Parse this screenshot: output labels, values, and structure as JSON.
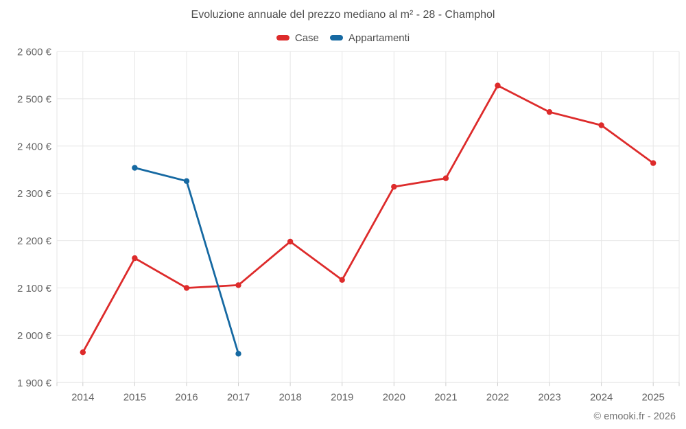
{
  "page": {
    "title": "Evoluzione annuale del prezzo mediano al m² - 28 - Champhol",
    "attribution": "© emooki.fr - 2026"
  },
  "colors": {
    "case_red": "#dd2b2b",
    "appartamenti_blue": "#1669a2",
    "grid": "#e6e6e6",
    "axis_tick": "#cccccc",
    "tick_label": "#666666",
    "title_text": "#4d4d4d",
    "attribution_text": "#757575"
  },
  "chart_data": {
    "type": "line",
    "title": "Evoluzione annuale del prezzo mediano al m² - 28 - Champhol",
    "x": [
      2014,
      2015,
      2016,
      2017,
      2018,
      2019,
      2020,
      2021,
      2022,
      2023,
      2024,
      2025
    ],
    "series": [
      {
        "name": "Case",
        "color": "#dd2b2b",
        "values": [
          1964,
          2163,
          2100,
          2106,
          2198,
          2117,
          2314,
          2332,
          2528,
          2472,
          2444,
          2364
        ]
      },
      {
        "name": "Appartamenti",
        "color": "#1669a2",
        "values": [
          null,
          2354,
          2326,
          1961,
          null,
          null,
          null,
          null,
          null,
          null,
          null,
          null
        ]
      }
    ],
    "ylim": [
      1900,
      2600
    ],
    "ytick_step": 100,
    "ytick_suffix": " €",
    "grid": true,
    "legend_position": "top"
  }
}
